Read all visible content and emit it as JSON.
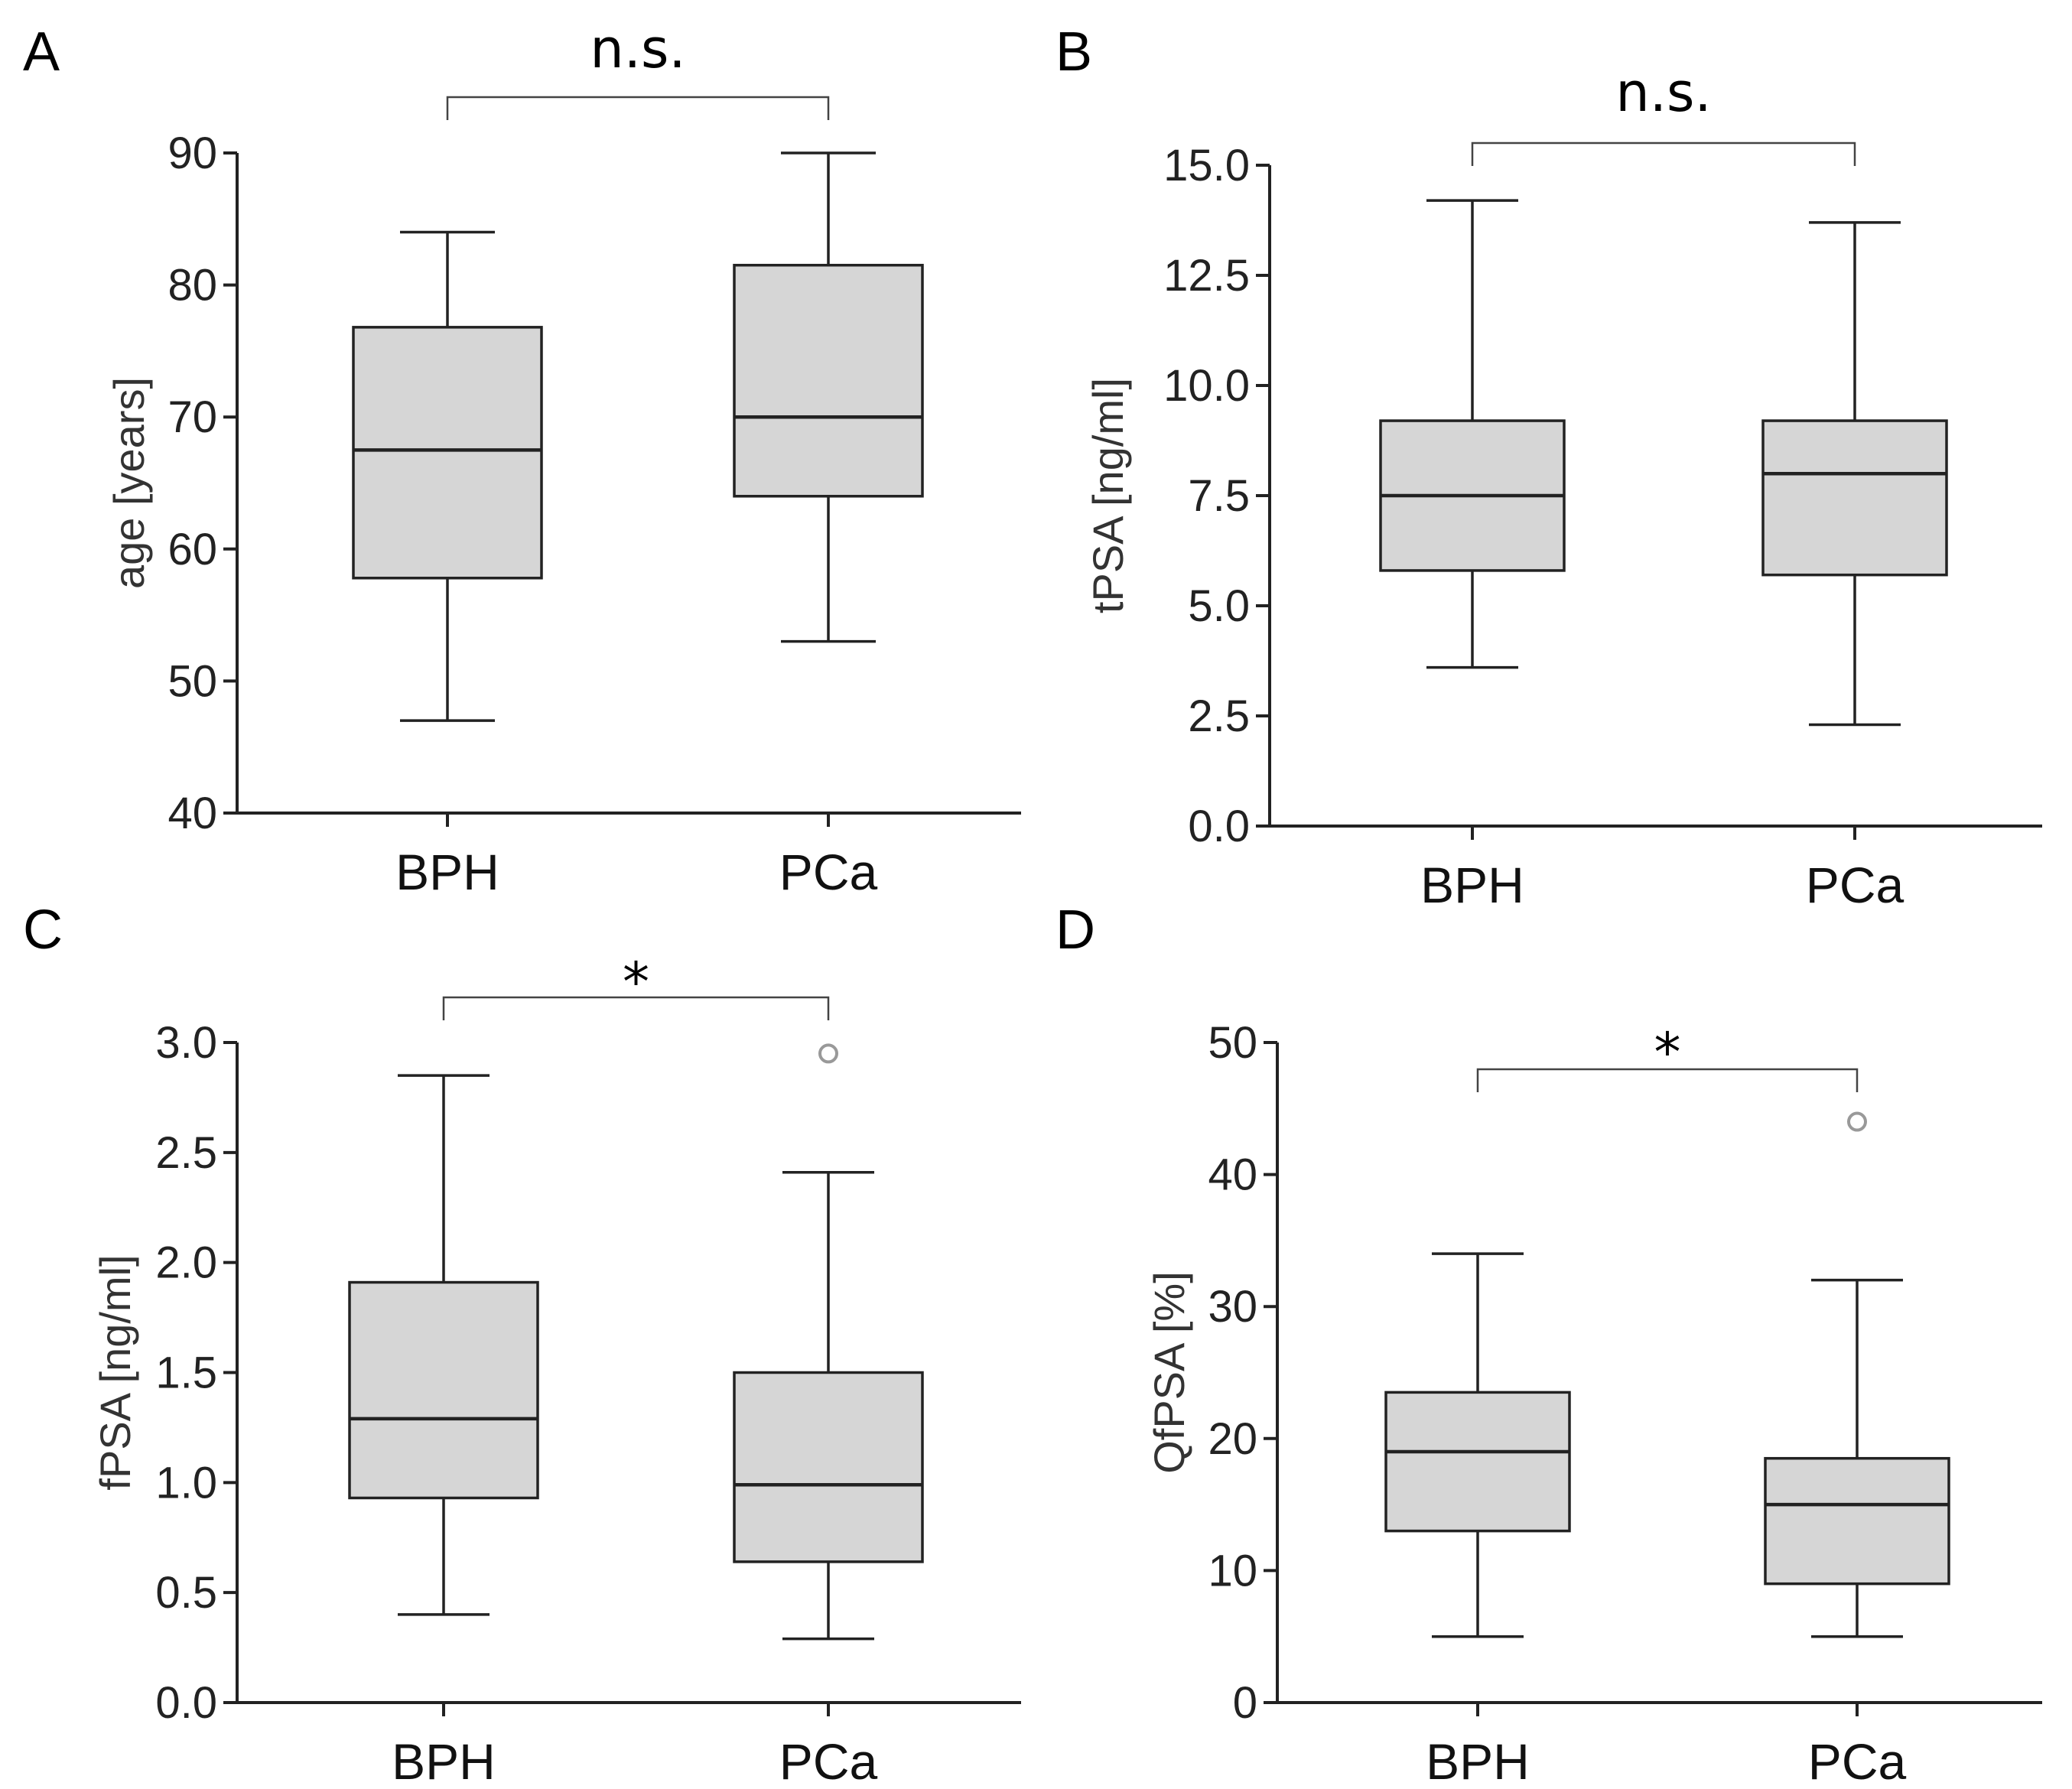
{
  "chart_data": [
    {
      "type": "box",
      "panel": "A",
      "ylabel": "age [years]",
      "ylim": [
        40,
        90
      ],
      "yticks": [
        40,
        50,
        60,
        70,
        80,
        90
      ],
      "ytick_labels": [
        "40",
        "50",
        "60",
        "70",
        "80",
        "90"
      ],
      "categories": [
        "BPH",
        "PCa"
      ],
      "boxes": [
        {
          "category": "BPH",
          "min": 47,
          "q1": 57.8,
          "median": 67.5,
          "q3": 76.8,
          "max": 84,
          "outliers": []
        },
        {
          "category": "PCa",
          "min": 53,
          "q1": 64,
          "median": 70,
          "q3": 81.5,
          "max": 90,
          "outliers": []
        }
      ],
      "significance": "n.s."
    },
    {
      "type": "box",
      "panel": "B",
      "ylabel": "tPSA [ng/ml]",
      "ylim": [
        0,
        15
      ],
      "yticks": [
        0,
        2.5,
        5,
        7.5,
        10,
        12.5,
        15
      ],
      "ytick_labels": [
        "0.0",
        "2.5",
        "5.0",
        "7.5",
        "10.0",
        "12.5",
        "15.0"
      ],
      "categories": [
        "BPH",
        "PCa"
      ],
      "boxes": [
        {
          "category": "BPH",
          "min": 3.6,
          "q1": 5.8,
          "median": 7.5,
          "q3": 9.2,
          "max": 14.2,
          "outliers": []
        },
        {
          "category": "PCa",
          "min": 2.3,
          "q1": 5.7,
          "median": 8.0,
          "q3": 9.2,
          "max": 13.7,
          "outliers": []
        }
      ],
      "significance": "n.s."
    },
    {
      "type": "box",
      "panel": "C",
      "ylabel": "fPSA [ng/ml]",
      "ylim": [
        0,
        3
      ],
      "yticks": [
        0,
        0.5,
        1,
        1.5,
        2,
        2.5,
        3
      ],
      "ytick_labels": [
        "0.0",
        "0.5",
        "1.0",
        "1.5",
        "2.0",
        "2.5",
        "3.0"
      ],
      "categories": [
        "BPH",
        "PCa"
      ],
      "boxes": [
        {
          "category": "BPH",
          "min": 0.4,
          "q1": 0.93,
          "median": 1.29,
          "q3": 1.91,
          "max": 2.85,
          "outliers": []
        },
        {
          "category": "PCa",
          "min": 0.29,
          "q1": 0.64,
          "median": 0.99,
          "q3": 1.5,
          "max": 2.41,
          "outliers": [
            2.95
          ]
        }
      ],
      "significance": "*"
    },
    {
      "type": "box",
      "panel": "D",
      "ylabel": "QfPSA [%]",
      "ylim": [
        0,
        50
      ],
      "yticks": [
        0,
        10,
        20,
        30,
        40,
        50
      ],
      "ytick_labels": [
        "0",
        "10",
        "20",
        "30",
        "40",
        "50"
      ],
      "categories": [
        "BPH",
        "PCa"
      ],
      "boxes": [
        {
          "category": "BPH",
          "min": 5,
          "q1": 13,
          "median": 19,
          "q3": 23.5,
          "max": 34,
          "outliers": []
        },
        {
          "category": "PCa",
          "min": 5,
          "q1": 9,
          "median": 15,
          "q3": 18.5,
          "max": 32,
          "outliers": [
            44
          ]
        }
      ],
      "significance": "*"
    }
  ]
}
